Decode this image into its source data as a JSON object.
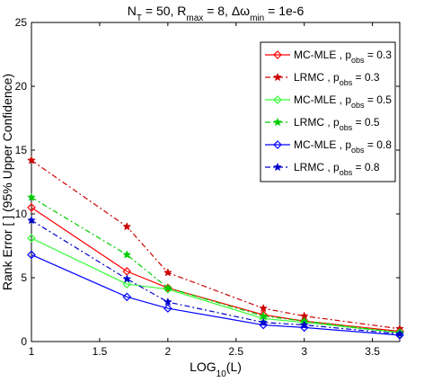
{
  "chart_data": {
    "type": "line",
    "title": {
      "base": "N",
      "parts": [
        {
          "t": "N"
        },
        {
          "t": "T",
          "sub": true
        },
        {
          "t": " = 50, R"
        },
        {
          "t": "max",
          "sub": true
        },
        {
          "t": " = 8, Δω"
        },
        {
          "t": "min",
          "sub": true
        },
        {
          "t": " = 1e-6"
        }
      ]
    },
    "xlabel": {
      "parts": [
        {
          "t": "LOG"
        },
        {
          "t": "10",
          "sub": true
        },
        {
          "t": "(L)"
        }
      ]
    },
    "ylabel": "Rank Error [ ] (95% Upper Confidence)",
    "xlim": [
      1,
      3.7
    ],
    "ylim": [
      0,
      25
    ],
    "xticks": [
      1,
      1.5,
      2,
      2.5,
      3,
      3.5
    ],
    "xtick_labels": [
      "1",
      "1.5",
      "2",
      "2.5",
      "3",
      "3.5"
    ],
    "yticks": [
      0,
      5,
      10,
      15,
      20,
      25
    ],
    "ytick_labels": [
      "0",
      "5",
      "10",
      "15",
      "20",
      "25"
    ],
    "grid": false,
    "legend_position": "top-right",
    "x": [
      1,
      1.7,
      2,
      2.7,
      3,
      3.7
    ],
    "series": [
      {
        "name_parts": [
          {
            "t": "MC-MLE , p"
          },
          {
            "t": "obs",
            "sub": true
          },
          {
            "t": " = 0.3"
          }
        ],
        "color": "#ff0000",
        "dash": "solid",
        "marker": "diamond",
        "values": [
          10.5,
          5.5,
          4.2,
          2.1,
          1.6,
          0.8
        ]
      },
      {
        "name_parts": [
          {
            "t": "LRMC , p"
          },
          {
            "t": "obs",
            "sub": true
          },
          {
            "t": " = 0.3"
          }
        ],
        "color": "#cc0000",
        "dash": "dashdot",
        "marker": "star",
        "values": [
          14.2,
          9.0,
          5.4,
          2.6,
          2.0,
          1.0
        ]
      },
      {
        "name_parts": [
          {
            "t": "MC-MLE , p"
          },
          {
            "t": "obs",
            "sub": true
          },
          {
            "t": " = 0.5"
          }
        ],
        "color": "#33ff33",
        "dash": "solid",
        "marker": "diamond",
        "values": [
          8.1,
          4.5,
          4.1,
          1.8,
          1.5,
          0.7
        ]
      },
      {
        "name_parts": [
          {
            "t": "LRMC , p"
          },
          {
            "t": "obs",
            "sub": true
          },
          {
            "t": " = 0.5"
          }
        ],
        "color": "#00cc00",
        "dash": "dashdot",
        "marker": "star",
        "values": [
          11.3,
          6.8,
          4.2,
          2.0,
          1.6,
          0.7
        ]
      },
      {
        "name_parts": [
          {
            "t": "MC-MLE , p"
          },
          {
            "t": "obs",
            "sub": true
          },
          {
            "t": " = 0.8"
          }
        ],
        "color": "#0000ff",
        "dash": "solid",
        "marker": "diamond",
        "values": [
          6.8,
          3.5,
          2.6,
          1.3,
          1.1,
          0.5
        ]
      },
      {
        "name_parts": [
          {
            "t": "LRMC , p"
          },
          {
            "t": "obs",
            "sub": true
          },
          {
            "t": " = 0.8"
          }
        ],
        "color": "#0000cc",
        "dash": "dashdot",
        "marker": "star",
        "values": [
          9.5,
          4.9,
          3.1,
          1.5,
          1.3,
          0.6
        ]
      }
    ]
  }
}
